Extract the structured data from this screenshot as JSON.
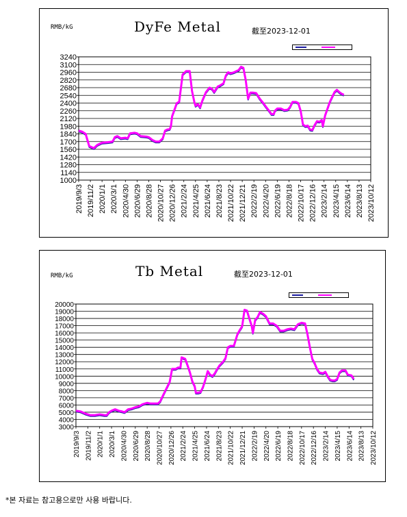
{
  "footnote": "*본 자료는 참고용으로만 사용 바랍니다.",
  "chart_data": [
    {
      "type": "line",
      "title": "DyFe Metal",
      "unit_label": "RMB/kG",
      "as_of": "截至2023-12-01",
      "ylim": [
        1000,
        3240
      ],
      "y_ticks": [
        1000,
        1140,
        1280,
        1420,
        1560,
        1700,
        1840,
        1980,
        2120,
        2260,
        2400,
        2540,
        2680,
        2820,
        2960,
        3100,
        3240
      ],
      "x_tick_labels": [
        "2019/9/3",
        "2019/11/2",
        "2020/1/1",
        "2020/3/1",
        "2020/4/30",
        "2020/6/29",
        "2020/8/28",
        "2020/10/27",
        "2020/12/26",
        "2021/2/24",
        "2021/4/25",
        "2021/6/24",
        "2021/8/23",
        "2021/10/22",
        "2021/12/21",
        "2022/2/19",
        "2022/4/20",
        "2022/6/19",
        "2022/8/18",
        "2022/10/17",
        "2022/12/16",
        "2023/2/14",
        "2023/4/15",
        "2023/6/14",
        "2023/8/13",
        "2023/10/12"
      ],
      "grid": true,
      "legend": "top-right",
      "colors": {
        "low": "#1a1aa0",
        "high": "#ff00ff"
      },
      "series": [
        {
          "values": [
            [
              0,
              1900
            ],
            [
              0.3,
              1880
            ],
            [
              0.6,
              1840
            ],
            [
              0.9,
              1620
            ],
            [
              1.3,
              1580
            ],
            [
              1.6,
              1640
            ],
            [
              2.0,
              1680
            ],
            [
              2.5,
              1690
            ],
            [
              2.9,
              1700
            ],
            [
              3.1,
              1780
            ],
            [
              3.3,
              1800
            ],
            [
              3.6,
              1760
            ],
            [
              4.0,
              1770
            ],
            [
              4.2,
              1760
            ],
            [
              4.4,
              1850
            ],
            [
              4.8,
              1860
            ],
            [
              5.0,
              1850
            ],
            [
              5.3,
              1800
            ],
            [
              5.8,
              1790
            ],
            [
              6.0,
              1780
            ],
            [
              6.3,
              1730
            ],
            [
              6.6,
              1700
            ],
            [
              6.9,
              1700
            ],
            [
              7.2,
              1760
            ],
            [
              7.4,
              1900
            ],
            [
              7.6,
              1920
            ],
            [
              7.8,
              1930
            ],
            [
              7.9,
              1980
            ],
            [
              8.0,
              2160
            ],
            [
              8.2,
              2280
            ],
            [
              8.4,
              2400
            ],
            [
              8.6,
              2420
            ],
            [
              8.9,
              2920
            ],
            [
              9.2,
              2980
            ],
            [
              9.5,
              2980
            ],
            [
              9.7,
              2620
            ],
            [
              9.9,
              2420
            ],
            [
              10.0,
              2350
            ],
            [
              10.2,
              2380
            ],
            [
              10.4,
              2320
            ],
            [
              10.6,
              2450
            ],
            [
              10.9,
              2600
            ],
            [
              11.2,
              2680
            ],
            [
              11.4,
              2660
            ],
            [
              11.6,
              2600
            ],
            [
              11.9,
              2700
            ],
            [
              12.1,
              2720
            ],
            [
              12.4,
              2760
            ],
            [
              12.6,
              2900
            ],
            [
              12.8,
              2960
            ],
            [
              13.0,
              2940
            ],
            [
              13.3,
              2960
            ],
            [
              13.5,
              2980
            ],
            [
              13.7,
              3000
            ],
            [
              13.9,
              3060
            ],
            [
              14.1,
              3040
            ],
            [
              14.3,
              2820
            ],
            [
              14.5,
              2480
            ],
            [
              14.7,
              2590
            ],
            [
              14.9,
              2590
            ],
            [
              15.2,
              2580
            ],
            [
              15.5,
              2480
            ],
            [
              15.8,
              2400
            ],
            [
              16.0,
              2340
            ],
            [
              16.3,
              2260
            ],
            [
              16.5,
              2200
            ],
            [
              16.7,
              2200
            ],
            [
              16.8,
              2260
            ],
            [
              17.0,
              2300
            ],
            [
              17.3,
              2300
            ],
            [
              17.6,
              2270
            ],
            [
              17.9,
              2280
            ],
            [
              18.1,
              2330
            ],
            [
              18.3,
              2420
            ],
            [
              18.6,
              2420
            ],
            [
              18.8,
              2400
            ],
            [
              19.0,
              2260
            ],
            [
              19.2,
              2010
            ],
            [
              19.4,
              1980
            ],
            [
              19.6,
              1990
            ],
            [
              19.8,
              1920
            ],
            [
              20.0,
              1910
            ],
            [
              20.2,
              2000
            ],
            [
              20.4,
              2070
            ],
            [
              20.6,
              2060
            ],
            [
              20.8,
              2090
            ],
            [
              20.9,
              1980
            ],
            [
              21.1,
              2180
            ],
            [
              21.3,
              2300
            ],
            [
              21.5,
              2420
            ],
            [
              21.7,
              2510
            ],
            [
              21.9,
              2600
            ],
            [
              22.1,
              2640
            ],
            [
              22.3,
              2600
            ],
            [
              22.5,
              2570
            ],
            [
              22.7,
              2550
            ]
          ]
        }
      ]
    },
    {
      "type": "line",
      "title": "Tb Metal",
      "unit_label": "RMB/kG",
      "as_of": "截至2023-12-01",
      "ylim": [
        3000,
        20000
      ],
      "y_ticks": [
        3000,
        4000,
        5000,
        6000,
        7000,
        8000,
        9000,
        10000,
        11000,
        12000,
        13000,
        14000,
        15000,
        16000,
        17000,
        18000,
        19000,
        20000
      ],
      "x_tick_labels": [
        "2019/9/3",
        "2019/11/2",
        "2020/1/1",
        "2020/3/1",
        "2020/4/30",
        "2020/6/29",
        "2020/8/28",
        "2020/10/27",
        "2020/12/26",
        "2021/2/24",
        "2021/4/25",
        "2021/6/24",
        "2021/8/23",
        "2021/10/22",
        "2021/12/21",
        "2022/2/19",
        "2022/4/20",
        "2022/6/19",
        "2022/8/18",
        "2022/10/17",
        "2022/12/16",
        "2023/2/14",
        "2023/4/15",
        "2023/6/14",
        "2023/8/13",
        "2023/10/12"
      ],
      "grid": true,
      "legend": "top-right",
      "colors": {
        "low": "#1a1aa0",
        "high": "#ff00ff"
      },
      "series": [
        {
          "values": [
            [
              0,
              5200
            ],
            [
              0.4,
              5100
            ],
            [
              0.8,
              4800
            ],
            [
              1.2,
              4600
            ],
            [
              1.6,
              4600
            ],
            [
              2.0,
              4700
            ],
            [
              2.4,
              4600
            ],
            [
              2.6,
              4600
            ],
            [
              2.8,
              5000
            ],
            [
              3.0,
              5200
            ],
            [
              3.3,
              5400
            ],
            [
              3.6,
              5200
            ],
            [
              3.9,
              5100
            ],
            [
              4.1,
              5000
            ],
            [
              4.4,
              5400
            ],
            [
              4.7,
              5500
            ],
            [
              5.0,
              5700
            ],
            [
              5.3,
              5800
            ],
            [
              5.6,
              6100
            ],
            [
              5.8,
              6200
            ],
            [
              6.0,
              6300
            ],
            [
              6.3,
              6200
            ],
            [
              6.6,
              6200
            ],
            [
              6.9,
              6200
            ],
            [
              7.1,
              6500
            ],
            [
              7.3,
              7200
            ],
            [
              7.6,
              8200
            ],
            [
              7.9,
              9200
            ],
            [
              8.1,
              11000
            ],
            [
              8.4,
              11000
            ],
            [
              8.6,
              11200
            ],
            [
              8.8,
              11200
            ],
            [
              8.9,
              12600
            ],
            [
              9.2,
              12400
            ],
            [
              9.4,
              11500
            ],
            [
              9.6,
              10500
            ],
            [
              9.8,
              9300
            ],
            [
              10.0,
              8600
            ],
            [
              10.1,
              7700
            ],
            [
              10.3,
              7700
            ],
            [
              10.5,
              7800
            ],
            [
              10.7,
              8500
            ],
            [
              10.9,
              9500
            ],
            [
              11.1,
              10700
            ],
            [
              11.3,
              10200
            ],
            [
              11.5,
              10000
            ],
            [
              11.7,
              10400
            ],
            [
              11.9,
              11000
            ],
            [
              12.1,
              11500
            ],
            [
              12.4,
              12000
            ],
            [
              12.6,
              12500
            ],
            [
              12.8,
              14000
            ],
            [
              13.0,
              14200
            ],
            [
              13.3,
              14200
            ],
            [
              13.6,
              15800
            ],
            [
              13.8,
              16400
            ],
            [
              14.0,
              16900
            ],
            [
              14.2,
              19200
            ],
            [
              14.4,
              19100
            ],
            [
              14.6,
              18000
            ],
            [
              14.8,
              17000
            ],
            [
              14.9,
              16000
            ],
            [
              15.1,
              17800
            ],
            [
              15.3,
              18200
            ],
            [
              15.5,
              18900
            ],
            [
              15.8,
              18600
            ],
            [
              16.0,
              18300
            ],
            [
              16.3,
              17300
            ],
            [
              16.6,
              17300
            ],
            [
              16.9,
              17000
            ],
            [
              17.2,
              16300
            ],
            [
              17.5,
              16300
            ],
            [
              17.8,
              16500
            ],
            [
              18.1,
              16600
            ],
            [
              18.4,
              16500
            ],
            [
              18.7,
              17200
            ],
            [
              19.0,
              17400
            ],
            [
              19.3,
              17300
            ],
            [
              19.5,
              15800
            ],
            [
              19.7,
              14000
            ],
            [
              19.9,
              12400
            ],
            [
              20.1,
              11800
            ],
            [
              20.3,
              11000
            ],
            [
              20.5,
              10500
            ],
            [
              20.8,
              10400
            ],
            [
              21.0,
              10600
            ],
            [
              21.2,
              10000
            ],
            [
              21.4,
              9500
            ],
            [
              21.6,
              9400
            ],
            [
              21.8,
              9400
            ],
            [
              22.0,
              9600
            ],
            [
              22.2,
              10500
            ],
            [
              22.4,
              10800
            ],
            [
              22.7,
              10800
            ],
            [
              22.9,
              10200
            ],
            [
              23.2,
              10100
            ],
            [
              23.4,
              9600
            ]
          ]
        }
      ]
    }
  ]
}
